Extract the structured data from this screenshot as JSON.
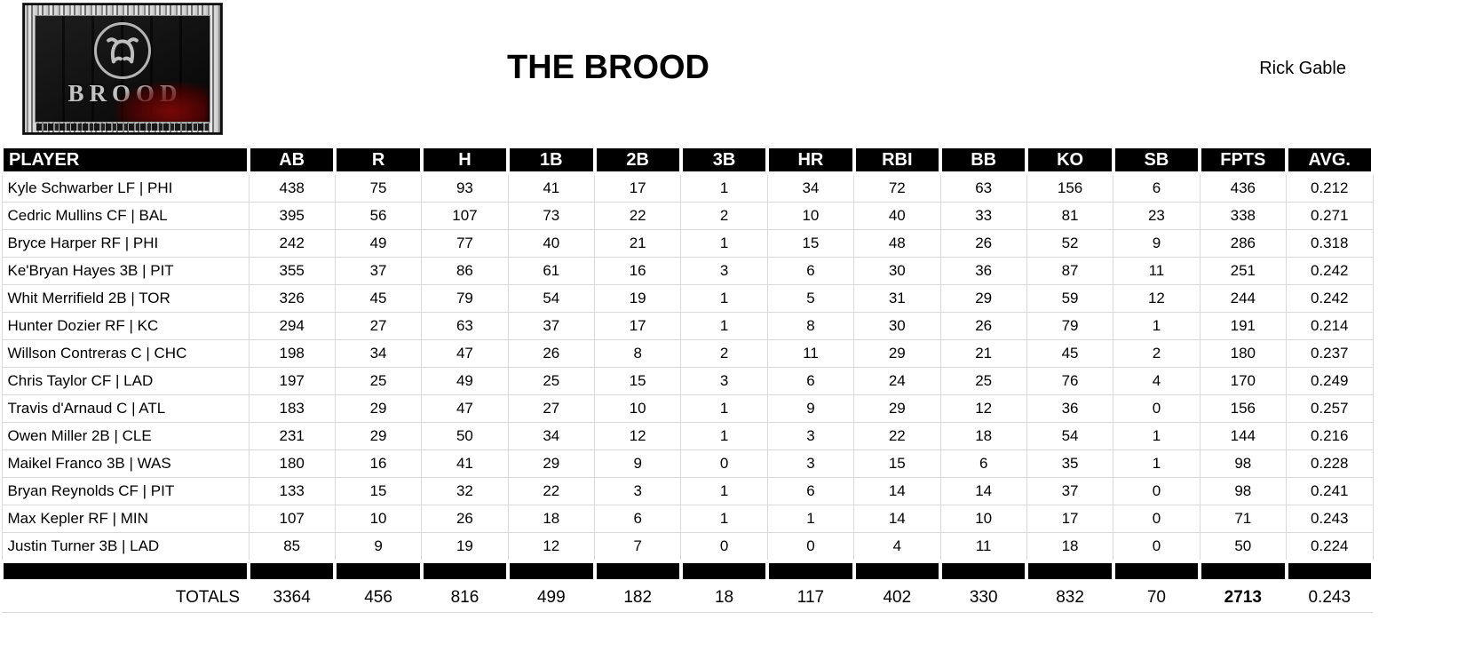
{
  "header": {
    "team_name": "THE BROOD",
    "owner": "Rick Gable"
  },
  "logo": {
    "wordmark": "BROOD"
  },
  "table": {
    "columns": [
      "PLAYER",
      "AB",
      "R",
      "H",
      "1B",
      "2B",
      "3B",
      "HR",
      "RBI",
      "BB",
      "KO",
      "SB",
      "FPTS",
      "AVG."
    ],
    "rows": [
      {
        "player": "Kyle Schwarber LF | PHI",
        "stats": [
          438,
          75,
          93,
          41,
          17,
          1,
          34,
          72,
          63,
          156,
          6,
          436,
          "0.212"
        ]
      },
      {
        "player": "Cedric Mullins CF | BAL",
        "stats": [
          395,
          56,
          107,
          73,
          22,
          2,
          10,
          40,
          33,
          81,
          23,
          338,
          "0.271"
        ]
      },
      {
        "player": "Bryce Harper RF | PHI",
        "stats": [
          242,
          49,
          77,
          40,
          21,
          1,
          15,
          48,
          26,
          52,
          9,
          286,
          "0.318"
        ]
      },
      {
        "player": "Ke'Bryan Hayes 3B | PIT",
        "stats": [
          355,
          37,
          86,
          61,
          16,
          3,
          6,
          30,
          36,
          87,
          11,
          251,
          "0.242"
        ]
      },
      {
        "player": "Whit Merrifield 2B | TOR",
        "stats": [
          326,
          45,
          79,
          54,
          19,
          1,
          5,
          31,
          29,
          59,
          12,
          244,
          "0.242"
        ]
      },
      {
        "player": "Hunter Dozier RF | KC",
        "stats": [
          294,
          27,
          63,
          37,
          17,
          1,
          8,
          30,
          26,
          79,
          1,
          191,
          "0.214"
        ]
      },
      {
        "player": "Willson Contreras C | CHC",
        "stats": [
          198,
          34,
          47,
          26,
          8,
          2,
          11,
          29,
          21,
          45,
          2,
          180,
          "0.237"
        ]
      },
      {
        "player": "Chris Taylor CF | LAD",
        "stats": [
          197,
          25,
          49,
          25,
          15,
          3,
          6,
          24,
          25,
          76,
          4,
          170,
          "0.249"
        ]
      },
      {
        "player": "Travis d'Arnaud C | ATL",
        "stats": [
          183,
          29,
          47,
          27,
          10,
          1,
          9,
          29,
          12,
          36,
          0,
          156,
          "0.257"
        ]
      },
      {
        "player": "Owen Miller 2B | CLE",
        "stats": [
          231,
          29,
          50,
          34,
          12,
          1,
          3,
          22,
          18,
          54,
          1,
          144,
          "0.216"
        ]
      },
      {
        "player": "Maikel Franco 3B | WAS",
        "stats": [
          180,
          16,
          41,
          29,
          9,
          0,
          3,
          15,
          6,
          35,
          1,
          98,
          "0.228"
        ]
      },
      {
        "player": "Bryan Reynolds CF | PIT",
        "stats": [
          133,
          15,
          32,
          22,
          3,
          1,
          6,
          14,
          14,
          37,
          0,
          98,
          "0.241"
        ]
      },
      {
        "player": "Max Kepler RF | MIN",
        "stats": [
          107,
          10,
          26,
          18,
          6,
          1,
          1,
          14,
          10,
          17,
          0,
          71,
          "0.243"
        ]
      },
      {
        "player": "Justin Turner 3B | LAD",
        "stats": [
          85,
          9,
          19,
          12,
          7,
          0,
          0,
          4,
          11,
          18,
          0,
          50,
          "0.224"
        ]
      }
    ],
    "totals": {
      "label": "TOTALS",
      "stats": [
        3364,
        456,
        816,
        499,
        182,
        18,
        117,
        402,
        330,
        832,
        70,
        2713,
        "0.243"
      ]
    }
  },
  "colors": {
    "table_header_bg": "#000000",
    "gridline": "#d9d9d9",
    "logo_accent_red": "#6e0a0a"
  }
}
